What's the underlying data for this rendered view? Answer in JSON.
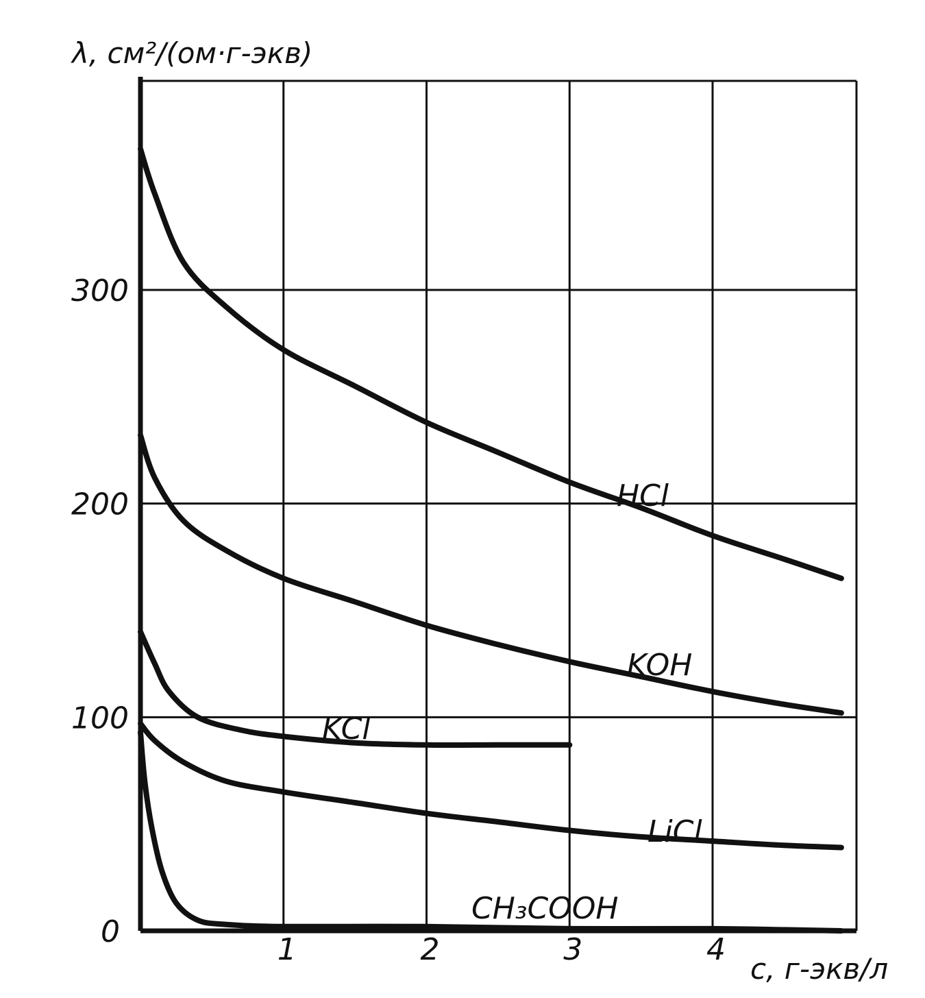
{
  "chart_data": {
    "type": "line",
    "title": "",
    "xlabel": "c, г-экв/л",
    "ylabel": "λ, см²/(ом·г-экв)",
    "xlim": [
      0,
      5.1
    ],
    "ylim": [
      0,
      390
    ],
    "grid": true,
    "x_ticks": [
      1,
      2,
      3,
      4
    ],
    "y_ticks": [
      0,
      100,
      200,
      300
    ],
    "series": [
      {
        "name": "HCl",
        "x": [
          0,
          0.1,
          0.3,
          0.6,
          1.0,
          1.5,
          2.0,
          2.5,
          3.0,
          3.5,
          4.0,
          4.5,
          4.9
        ],
        "values": [
          366,
          345,
          313,
          292,
          272,
          255,
          238,
          224,
          210,
          198,
          185,
          174,
          165
        ]
      },
      {
        "name": "KOH",
        "x": [
          0,
          0.1,
          0.3,
          0.6,
          1.0,
          1.5,
          2.0,
          2.5,
          3.0,
          3.5,
          4.0,
          4.5,
          4.9
        ],
        "values": [
          232,
          212,
          192,
          178,
          165,
          154,
          143,
          134,
          126,
          119,
          112,
          106,
          102
        ]
      },
      {
        "name": "KCl",
        "x": [
          0,
          0.1,
          0.2,
          0.4,
          0.7,
          1.0,
          1.5,
          2.0,
          2.5,
          3.0
        ],
        "values": [
          140,
          125,
          112,
          100,
          94,
          91,
          88,
          87,
          87,
          87
        ]
      },
      {
        "name": "LiCl",
        "x": [
          0,
          0.1,
          0.3,
          0.6,
          1.0,
          1.5,
          2.0,
          2.5,
          3.0,
          3.5,
          4.0,
          4.5,
          4.9
        ],
        "values": [
          97,
          89,
          79,
          70,
          65,
          60,
          55,
          51,
          47,
          44,
          42,
          40,
          39
        ]
      },
      {
        "name": "CH₃COOH",
        "x": [
          0,
          0.03,
          0.08,
          0.15,
          0.25,
          0.4,
          0.6,
          1.0,
          2.0,
          3.0,
          4.0,
          4.9
        ],
        "values": [
          93,
          70,
          48,
          28,
          13,
          5,
          3,
          2,
          2,
          1,
          1,
          0
        ]
      }
    ]
  }
}
